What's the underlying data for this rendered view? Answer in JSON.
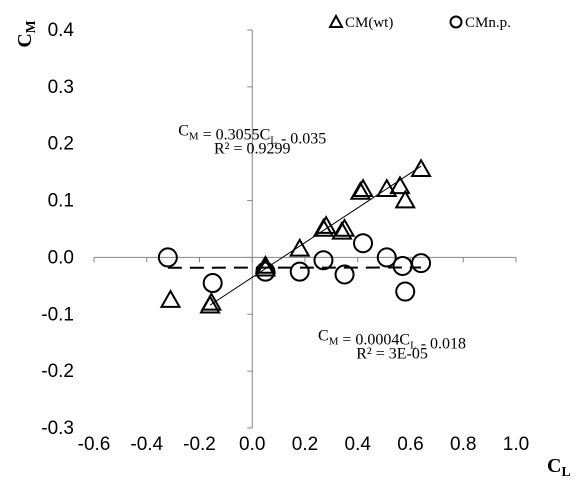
{
  "chart_data": {
    "type": "scatter",
    "ylabel": "C",
    "ylabel_sub": "M",
    "xlabel": "C",
    "xlabel_sub": "L",
    "xlim": [
      -0.6,
      1.0
    ],
    "ylim": [
      -0.3,
      0.4
    ],
    "xticks": [
      "-0.6",
      "-0.4",
      "-0.2",
      "0.0",
      "0.2",
      "0.4",
      "0.6",
      "0.8",
      "1.0"
    ],
    "yticks": [
      "0.4",
      "0.3",
      "0.2",
      "0.1",
      "0.0",
      "-0.1",
      "-0.2",
      "-0.3"
    ],
    "grid": false,
    "legend_position": "top-right",
    "series": [
      {
        "name": "CM(wt)",
        "marker": "triangle",
        "points": [
          [
            -0.31,
            -0.075
          ],
          [
            -0.16,
            -0.085
          ],
          [
            -0.155,
            -0.08
          ],
          [
            0.05,
            -0.015
          ],
          [
            0.05,
            -0.02
          ],
          [
            0.18,
            0.015
          ],
          [
            0.27,
            0.05
          ],
          [
            0.28,
            0.055
          ],
          [
            0.34,
            0.045
          ],
          [
            0.35,
            0.05
          ],
          [
            0.41,
            0.115
          ],
          [
            0.42,
            0.12
          ],
          [
            0.51,
            0.12
          ],
          [
            0.56,
            0.125
          ],
          [
            0.58,
            0.1
          ],
          [
            0.64,
            0.155
          ]
        ]
      },
      {
        "name": "CMn.p.",
        "marker": "circle",
        "points": [
          [
            -0.32,
            0.0
          ],
          [
            -0.15,
            -0.045
          ],
          [
            0.05,
            -0.025
          ],
          [
            0.18,
            -0.025
          ],
          [
            0.27,
            -0.005
          ],
          [
            0.35,
            -0.03
          ],
          [
            0.42,
            0.025
          ],
          [
            0.51,
            0.0
          ],
          [
            0.57,
            -0.015
          ],
          [
            0.58,
            -0.06
          ],
          [
            0.64,
            -0.01
          ]
        ]
      }
    ],
    "trendlines": [
      {
        "series": "CM(wt)",
        "style": "solid",
        "slope": 0.3055,
        "intercept": -0.035,
        "x_range": [
          -0.16,
          0.64
        ],
        "equation_prefix": "C",
        "equation_prefix_sub": "M",
        "equation_mid": " = 0.3055C",
        "equation_mid_sub": "L",
        "equation_suffix": " - 0.035",
        "r2": "R² = 0.9299",
        "label_anchor": [
          0.0,
          0.2
        ]
      },
      {
        "series": "CMn.p.",
        "style": "dashed",
        "slope": 0.0004,
        "intercept": -0.018,
        "x_range": [
          -0.32,
          0.64
        ],
        "equation_prefix": "C",
        "equation_prefix_sub": "M",
        "equation_mid": " = 0.0004C",
        "equation_mid_sub": "L",
        "equation_suffix": " - 0.018",
        "r2": "R² = 3E-05",
        "label_anchor": [
          0.53,
          -0.16
        ]
      }
    ],
    "colors": {
      "axis": "#868686",
      "marker": "#000000"
    }
  }
}
